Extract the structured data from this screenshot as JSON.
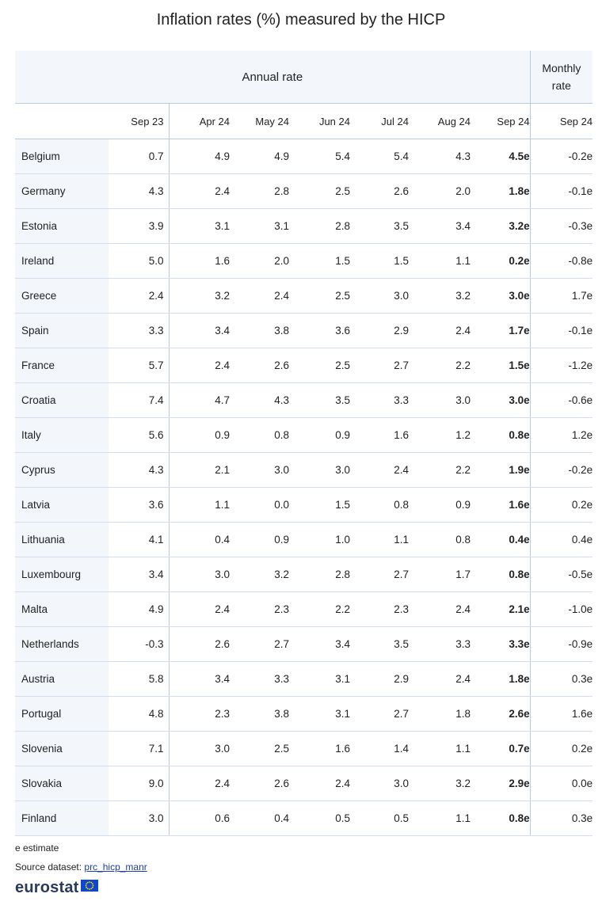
{
  "title": "Inflation rates (%) measured by the HICP",
  "header": {
    "annual_label": "Annual rate",
    "monthly_label_line1": "Monthly",
    "monthly_label_line2": "rate",
    "columns": [
      "Sep 23",
      "Apr 24",
      "May 24",
      "Jun 24",
      "Jul 24",
      "Aug 24",
      "Sep 24",
      "Sep 24"
    ]
  },
  "chart_data": {
    "type": "table",
    "title": "Inflation rates (%) measured by the HICP",
    "column_groups": [
      {
        "name": "Annual rate",
        "columns": [
          "Sep 23",
          "Apr 24",
          "May 24",
          "Jun 24",
          "Jul 24",
          "Aug 24",
          "Sep 24"
        ]
      },
      {
        "name": "Monthly rate",
        "columns": [
          "Sep 24"
        ]
      }
    ],
    "rows": [
      {
        "country": "Belgium",
        "values": [
          "0.7",
          "4.9",
          "4.9",
          "5.4",
          "5.4",
          "4.3",
          "4.5e",
          "-0.2e"
        ]
      },
      {
        "country": "Germany",
        "values": [
          "4.3",
          "2.4",
          "2.8",
          "2.5",
          "2.6",
          "2.0",
          "1.8e",
          "-0.1e"
        ]
      },
      {
        "country": "Estonia",
        "values": [
          "3.9",
          "3.1",
          "3.1",
          "2.8",
          "3.5",
          "3.4",
          "3.2e",
          "-0.3e"
        ]
      },
      {
        "country": "Ireland",
        "values": [
          "5.0",
          "1.6",
          "2.0",
          "1.5",
          "1.5",
          "1.1",
          "0.2e",
          "-0.8e"
        ]
      },
      {
        "country": "Greece",
        "values": [
          "2.4",
          "3.2",
          "2.4",
          "2.5",
          "3.0",
          "3.2",
          "3.0e",
          "1.7e"
        ]
      },
      {
        "country": "Spain",
        "values": [
          "3.3",
          "3.4",
          "3.8",
          "3.6",
          "2.9",
          "2.4",
          "1.7e",
          "-0.1e"
        ]
      },
      {
        "country": "France",
        "values": [
          "5.7",
          "2.4",
          "2.6",
          "2.5",
          "2.7",
          "2.2",
          "1.5e",
          "-1.2e"
        ]
      },
      {
        "country": "Croatia",
        "values": [
          "7.4",
          "4.7",
          "4.3",
          "3.5",
          "3.3",
          "3.0",
          "3.0e",
          "-0.6e"
        ]
      },
      {
        "country": "Italy",
        "values": [
          "5.6",
          "0.9",
          "0.8",
          "0.9",
          "1.6",
          "1.2",
          "0.8e",
          "1.2e"
        ]
      },
      {
        "country": "Cyprus",
        "values": [
          "4.3",
          "2.1",
          "3.0",
          "3.0",
          "2.4",
          "2.2",
          "1.9e",
          "-0.2e"
        ]
      },
      {
        "country": "Latvia",
        "values": [
          "3.6",
          "1.1",
          "0.0",
          "1.5",
          "0.8",
          "0.9",
          "1.6e",
          "0.2e"
        ]
      },
      {
        "country": "Lithuania",
        "values": [
          "4.1",
          "0.4",
          "0.9",
          "1.0",
          "1.1",
          "0.8",
          "0.4e",
          "0.4e"
        ]
      },
      {
        "country": "Luxembourg",
        "values": [
          "3.4",
          "3.0",
          "3.2",
          "2.8",
          "2.7",
          "1.7",
          "0.8e",
          "-0.5e"
        ]
      },
      {
        "country": "Malta",
        "values": [
          "4.9",
          "2.4",
          "2.3",
          "2.2",
          "2.3",
          "2.4",
          "2.1e",
          "-1.0e"
        ]
      },
      {
        "country": "Netherlands",
        "values": [
          "-0.3",
          "2.6",
          "2.7",
          "3.4",
          "3.5",
          "3.3",
          "3.3e",
          "-0.9e"
        ]
      },
      {
        "country": "Austria",
        "values": [
          "5.8",
          "3.4",
          "3.3",
          "3.1",
          "2.9",
          "2.4",
          "1.8e",
          "0.3e"
        ]
      },
      {
        "country": "Portugal",
        "values": [
          "4.8",
          "2.3",
          "3.8",
          "3.1",
          "2.7",
          "1.8",
          "2.6e",
          "1.6e"
        ]
      },
      {
        "country": "Slovenia",
        "values": [
          "7.1",
          "3.0",
          "2.5",
          "1.6",
          "1.4",
          "1.1",
          "0.7e",
          "0.2e"
        ]
      },
      {
        "country": "Slovakia",
        "values": [
          "9.0",
          "2.4",
          "2.6",
          "2.4",
          "3.0",
          "3.2",
          "2.9e",
          "0.0e"
        ]
      },
      {
        "country": "Finland",
        "values": [
          "3.0",
          "0.6",
          "0.4",
          "0.5",
          "0.5",
          "1.1",
          "0.8e",
          "0.3e"
        ]
      }
    ]
  },
  "footer": {
    "estimate_note": "e estimate",
    "source_prefix": "Source dataset: ",
    "source_link": "prc_hicp_manr",
    "brand": "eurostat"
  },
  "colors": {
    "header_bg": "#f3f7fb",
    "grid_line": "#b9c9e2",
    "link": "#1a3fa5",
    "flag_blue": "#0e47cb",
    "flag_stars": "#ffdd00"
  }
}
